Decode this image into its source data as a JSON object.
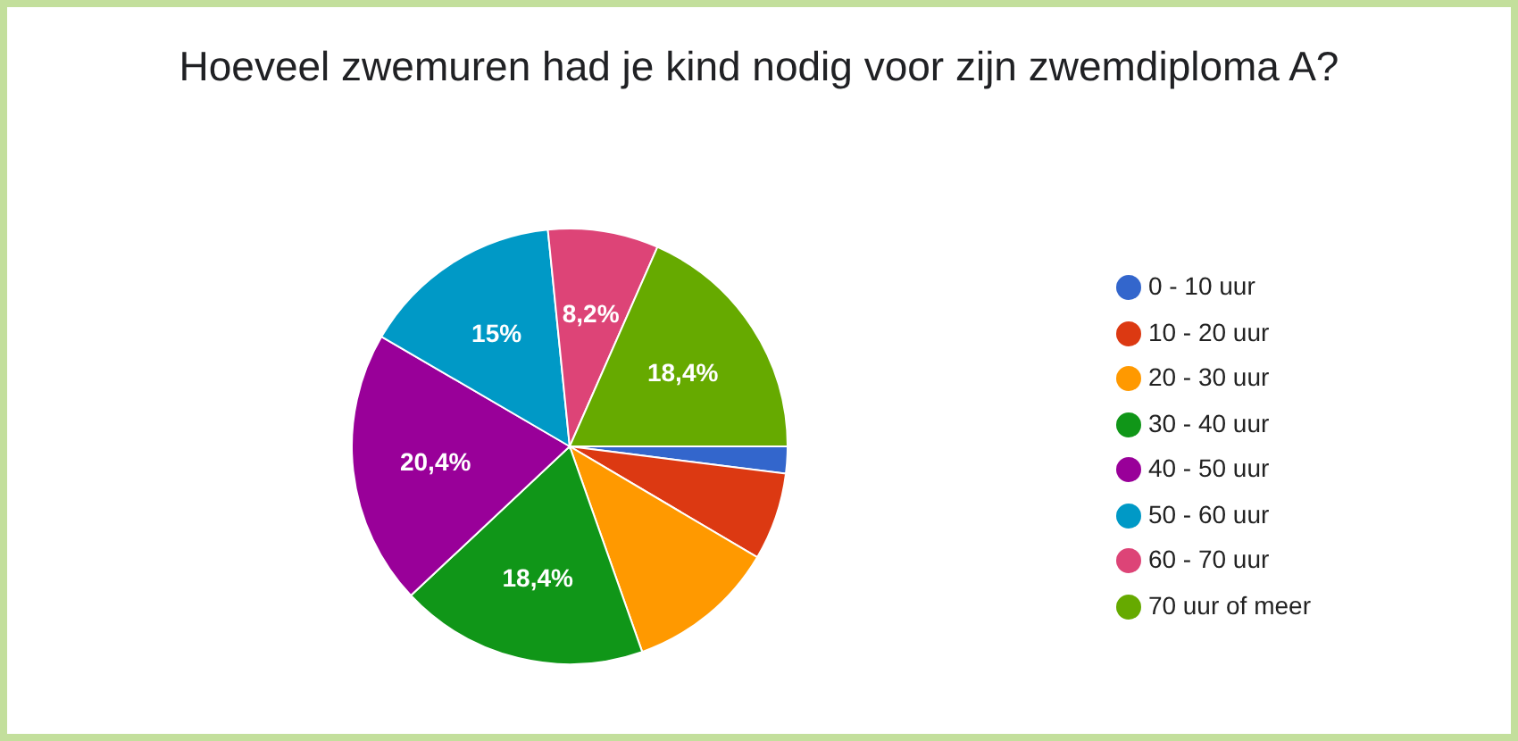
{
  "chart_data": {
    "type": "pie",
    "title": "Hoeveel zwemuren had je kind nodig voor zijn zwemdiploma A?",
    "categories": [
      "0 - 10 uur",
      "10 - 20 uur",
      "20 - 30 uur",
      "30 - 40 uur",
      "40 - 50 uur",
      "50 - 60 uur",
      "60 - 70 uur",
      "70 uur of meer"
    ],
    "values": [
      2,
      6.5,
      11.1,
      18.4,
      20.4,
      15,
      8.2,
      18.4
    ],
    "colors": [
      "#3366cc",
      "#dc3912",
      "#ff9900",
      "#109618",
      "#990099",
      "#0099c6",
      "#dd4477",
      "#66aa00"
    ],
    "value_labels": [
      null,
      null,
      null,
      "18,4%",
      "20,4%",
      "15%",
      "8,2%",
      "18,4%"
    ],
    "legend": "right"
  }
}
